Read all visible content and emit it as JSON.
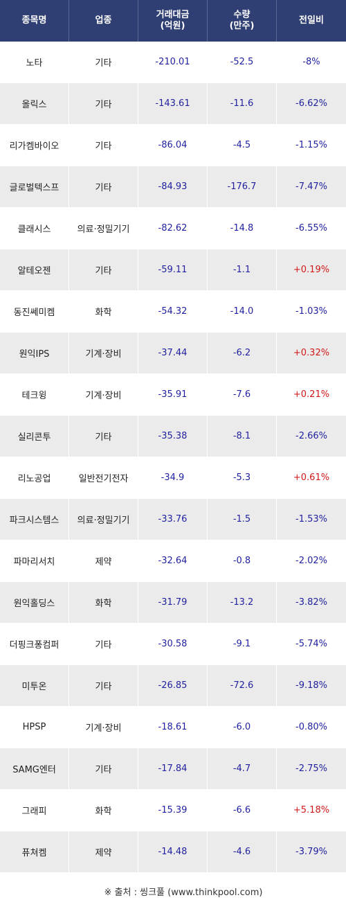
{
  "header": {
    "name": "종목명",
    "sector": "업종",
    "amount_line1": "거래대금",
    "amount_line2": "(억원)",
    "volume_line1": "수량",
    "volume_line2": "(만주)",
    "change": "전일비"
  },
  "colors": {
    "header_bg": "#2f3f73",
    "negative": "#1f1fa0",
    "positive": "#d01818"
  },
  "rows": [
    {
      "name": "노타",
      "sector": "기타",
      "amount": "-210.01",
      "volume": "-52.5",
      "change": "-8%"
    },
    {
      "name": "올릭스",
      "sector": "기타",
      "amount": "-143.61",
      "volume": "-11.6",
      "change": "-6.62%"
    },
    {
      "name": "리가켐바이오",
      "sector": "기타",
      "amount": "-86.04",
      "volume": "-4.5",
      "change": "-1.15%"
    },
    {
      "name": "글로벌텍스프",
      "sector": "기타",
      "amount": "-84.93",
      "volume": "-176.7",
      "change": "-7.47%"
    },
    {
      "name": "클래시스",
      "sector": "의료·정밀기기",
      "amount": "-82.62",
      "volume": "-14.8",
      "change": "-6.55%"
    },
    {
      "name": "알테오젠",
      "sector": "기타",
      "amount": "-59.11",
      "volume": "-1.1",
      "change": "+0.19%"
    },
    {
      "name": "동진쎄미켐",
      "sector": "화학",
      "amount": "-54.32",
      "volume": "-14.0",
      "change": "-1.03%"
    },
    {
      "name": "원익IPS",
      "sector": "기계·장비",
      "amount": "-37.44",
      "volume": "-6.2",
      "change": "+0.32%"
    },
    {
      "name": "테크윙",
      "sector": "기계·장비",
      "amount": "-35.91",
      "volume": "-7.6",
      "change": "+0.21%"
    },
    {
      "name": "실리콘투",
      "sector": "기타",
      "amount": "-35.38",
      "volume": "-8.1",
      "change": "-2.66%"
    },
    {
      "name": "리노공업",
      "sector": "일반전기전자",
      "amount": "-34.9",
      "volume": "-5.3",
      "change": "+0.61%"
    },
    {
      "name": "파크시스템스",
      "sector": "의료·정밀기기",
      "amount": "-33.76",
      "volume": "-1.5",
      "change": "-1.53%"
    },
    {
      "name": "파마리서치",
      "sector": "제약",
      "amount": "-32.64",
      "volume": "-0.8",
      "change": "-2.02%"
    },
    {
      "name": "원익홀딩스",
      "sector": "화학",
      "amount": "-31.79",
      "volume": "-13.2",
      "change": "-3.82%"
    },
    {
      "name": "더핑크퐁컴퍼",
      "sector": "기타",
      "amount": "-30.58",
      "volume": "-9.1",
      "change": "-5.74%"
    },
    {
      "name": "미투온",
      "sector": "기타",
      "amount": "-26.85",
      "volume": "-72.6",
      "change": "-9.18%"
    },
    {
      "name": "HPSP",
      "sector": "기계·장비",
      "amount": "-18.61",
      "volume": "-6.0",
      "change": "-0.80%"
    },
    {
      "name": "SAMG엔터",
      "sector": "기타",
      "amount": "-17.84",
      "volume": "-4.7",
      "change": "-2.75%"
    },
    {
      "name": "그래피",
      "sector": "화학",
      "amount": "-15.39",
      "volume": "-6.6",
      "change": "+5.18%"
    },
    {
      "name": "퓨쳐켐",
      "sector": "제약",
      "amount": "-14.48",
      "volume": "-4.6",
      "change": "-3.79%"
    }
  ],
  "footer": {
    "source": "※ 출처 : 씽크풀 (www.thinkpool.com)"
  }
}
